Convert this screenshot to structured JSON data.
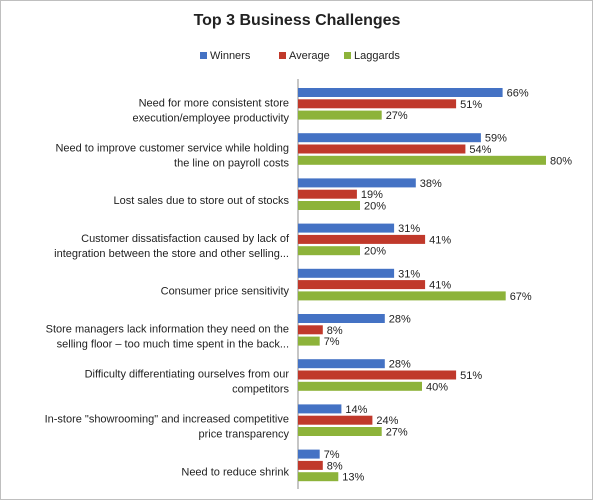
{
  "chart_data": {
    "type": "bar",
    "orientation": "horizontal",
    "title": "Top 3 Business Challenges",
    "legend_position": "top",
    "grid": false,
    "xlim": [
      0,
      100
    ],
    "categories": [
      [
        "Need for more consistent store",
        "execution/employee productivity"
      ],
      [
        "Need to improve customer service while holding",
        "the line on payroll costs"
      ],
      [
        "Lost sales due to store out of stocks"
      ],
      [
        "Customer dissatisfaction caused by lack of",
        "integration between the store and other selling..."
      ],
      [
        "Consumer price sensitivity"
      ],
      [
        "Store managers lack information they need on the",
        "selling floor – too much time spent in the back..."
      ],
      [
        "Difficulty differentiating ourselves from our",
        "competitors"
      ],
      [
        "In-store \"showrooming\" and increased competitive",
        "price transparency"
      ],
      [
        "Need to reduce shrink"
      ]
    ],
    "series": [
      {
        "name": "Winners",
        "color": "#4472C4",
        "values": [
          66,
          59,
          38,
          31,
          31,
          28,
          28,
          14,
          7
        ]
      },
      {
        "name": "Average",
        "color": "#C0392B",
        "values": [
          51,
          54,
          19,
          41,
          41,
          8,
          51,
          24,
          8
        ]
      },
      {
        "name": "Laggards",
        "color": "#8DB33A",
        "values": [
          27,
          80,
          20,
          20,
          67,
          7,
          40,
          27,
          13
        ]
      }
    ],
    "value_suffix": "%"
  }
}
